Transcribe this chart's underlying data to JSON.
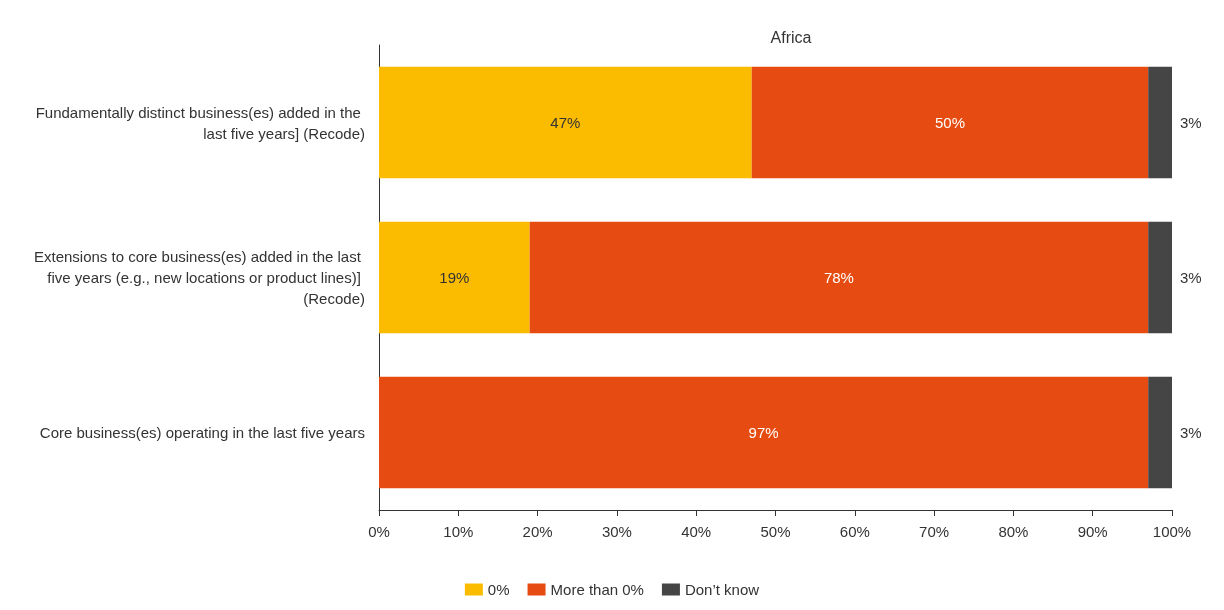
{
  "chart_data": {
    "type": "bar",
    "orientation": "horizontal",
    "stacked": true,
    "title": "Africa",
    "categories": [
      "Fundamentally distinct business(es) added in the last five years] (Recode)",
      "Extensions to core business(es) added in the last five years (e.g., new locations or product lines)] (Recode)",
      "Core business(es) operating in the last five years"
    ],
    "series": [
      {
        "name": "0%",
        "color": "#fbbc00",
        "values": [
          47,
          19,
          0
        ],
        "value_labels": [
          "47%",
          "19%",
          null
        ]
      },
      {
        "name": "More than 0%",
        "color": "#e64b11",
        "values": [
          50,
          78,
          97
        ],
        "value_labels": [
          "50%",
          "78%",
          "97%"
        ]
      },
      {
        "name": "Don’t know",
        "color": "#454545",
        "values": [
          3,
          3,
          3
        ],
        "value_labels": [
          "3%",
          "3%",
          "3%"
        ]
      }
    ],
    "xlim": [
      0,
      100
    ],
    "xticks": [
      {
        "value": 0,
        "label": "0%"
      },
      {
        "value": 10,
        "label": "10%"
      },
      {
        "value": 20,
        "label": "20%"
      },
      {
        "value": 30,
        "label": "30%"
      },
      {
        "value": 40,
        "label": "40%"
      },
      {
        "value": 50,
        "label": "50%"
      },
      {
        "value": 60,
        "label": "60%"
      },
      {
        "value": 70,
        "label": "70%"
      },
      {
        "value": 80,
        "label": "80%"
      },
      {
        "value": 90,
        "label": "90%"
      },
      {
        "value": 100,
        "label": "100%"
      }
    ],
    "legend": "bottom"
  }
}
